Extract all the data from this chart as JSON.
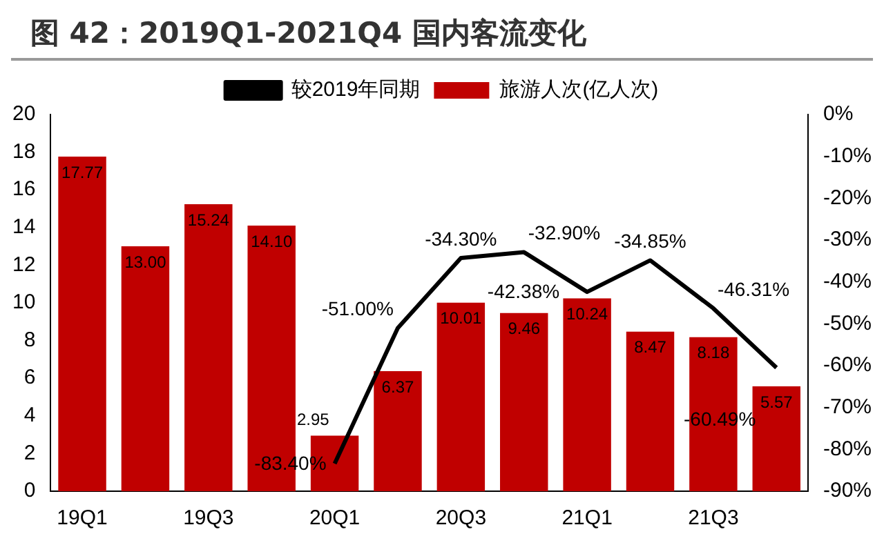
{
  "chart_data": {
    "type": "bar",
    "title": "图 42：2019Q1-2021Q4 国内客流变化",
    "categories": [
      "19Q1",
      null,
      "19Q3",
      null,
      "20Q1",
      null,
      "20Q3",
      null,
      "21Q1",
      null,
      "21Q3",
      null
    ],
    "series": [
      {
        "name": "旅游人次(亿人次)",
        "color": "#c00000",
        "values": [
          17.77,
          13.0,
          15.24,
          14.1,
          2.95,
          6.37,
          10.01,
          9.46,
          10.24,
          8.47,
          8.18,
          5.57
        ],
        "value_labels": [
          "17.77",
          "13.00",
          "15.24",
          "14.10",
          "2.95",
          "6.37",
          "10.01",
          "9.46",
          "10.24",
          "8.47",
          "8.18",
          "5.57"
        ]
      },
      {
        "name": "较2019年同期",
        "type": "line",
        "axis": "y2",
        "color": "#000000",
        "values": [
          null,
          null,
          null,
          null,
          -83.4,
          -51.0,
          -34.3,
          -32.9,
          -42.38,
          -34.85,
          -46.31,
          -60.49
        ],
        "value_labels": [
          null,
          null,
          null,
          null,
          "-83.40%",
          "-51.00%",
          "-34.30%",
          "-32.90%",
          "-42.38%",
          "-34.85%",
          "-46.31%",
          "-60.49%"
        ]
      }
    ],
    "ylim": [
      0,
      20
    ],
    "yticks": [
      0,
      2,
      4,
      6,
      8,
      10,
      12,
      14,
      16,
      18,
      20
    ],
    "y2lim": [
      -90,
      0
    ],
    "y2ticks": [
      {
        "value": -90,
        "label": "-90%"
      },
      {
        "value": -80,
        "label": "-80%"
      },
      {
        "value": -70,
        "label": "-70%"
      },
      {
        "value": -60,
        "label": "-60%"
      },
      {
        "value": -50,
        "label": "-50%"
      },
      {
        "value": -40,
        "label": "-40%"
      },
      {
        "value": -30,
        "label": "-30%"
      },
      {
        "value": -20,
        "label": "-20%"
      },
      {
        "value": -10,
        "label": "-10%"
      },
      {
        "value": 0,
        "label": "0%"
      }
    ],
    "grid": false,
    "legend": "top",
    "marker": "none",
    "line_style": "solid"
  }
}
